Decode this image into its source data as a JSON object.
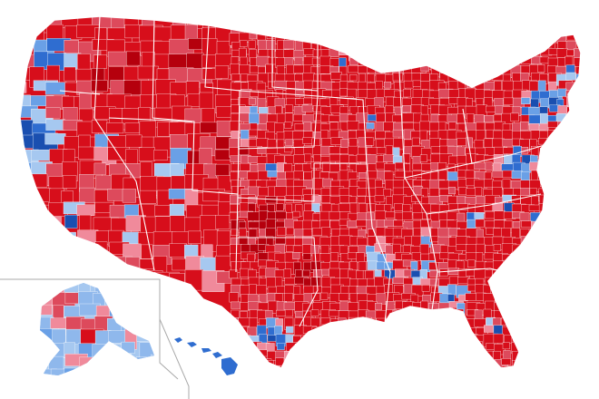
{
  "map": {
    "legend_colors": {
      "republican_strong": "#b5000d",
      "republican_solid": "#d70e1b",
      "republican_lean": "#dd4a5c",
      "republican_slight": "#f08a9b",
      "democratic_slight": "#a6c8f0",
      "democratic_lean": "#6aa0e6",
      "democratic_solid": "#2f6dd0",
      "democratic_strong": "#1a4fb0"
    },
    "regions": [
      {
        "name": "contiguous-us"
      },
      {
        "name": "alaska"
      },
      {
        "name": "hawaii"
      }
    ]
  }
}
